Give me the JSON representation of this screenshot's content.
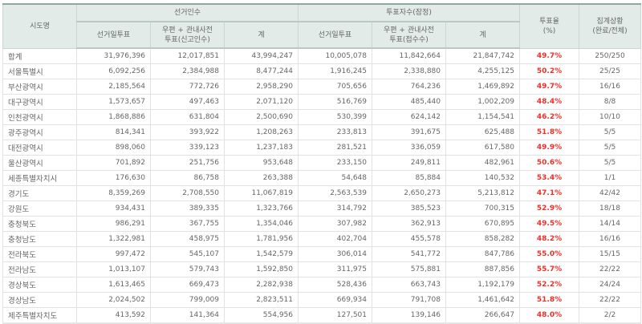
{
  "table": {
    "headers": {
      "region": "시도명",
      "electors_group": "선거인수",
      "voters_group": "투표자수(잠정)",
      "turnout": "투표율\n(%)",
      "status": "집계상황\n(완료/전체)",
      "electors_sub": [
        "선거일투표",
        "우편 + 관내사전\n투표(신고인수)",
        "계"
      ],
      "voters_sub": [
        "선거일투표",
        "우편 + 관내사전\n투표(접수수)",
        "계"
      ]
    },
    "rows": [
      {
        "region": "합계",
        "e_day": "31,976,396",
        "e_early": "12,017,851",
        "e_total": "43,994,247",
        "v_day": "10,005,078",
        "v_early": "11,842,664",
        "v_total": "21,847,742",
        "turnout": "49.7%",
        "status": "250/250"
      },
      {
        "region": "서울특별시",
        "e_day": "6,092,256",
        "e_early": "2,384,988",
        "e_total": "8,477,244",
        "v_day": "1,916,245",
        "v_early": "2,338,880",
        "v_total": "4,255,125",
        "turnout": "50.2%",
        "status": "25/25"
      },
      {
        "region": "부산광역시",
        "e_day": "2,185,564",
        "e_early": "772,726",
        "e_total": "2,958,290",
        "v_day": "705,656",
        "v_early": "764,236",
        "v_total": "1,469,892",
        "turnout": "49.7%",
        "status": "16/16"
      },
      {
        "region": "대구광역시",
        "e_day": "1,573,657",
        "e_early": "497,463",
        "e_total": "2,071,120",
        "v_day": "516,769",
        "v_early": "485,440",
        "v_total": "1,002,209",
        "turnout": "48.4%",
        "status": "8/8"
      },
      {
        "region": "인천광역시",
        "e_day": "1,868,886",
        "e_early": "631,804",
        "e_total": "2,500,690",
        "v_day": "530,399",
        "v_early": "624,142",
        "v_total": "1,154,541",
        "turnout": "46.2%",
        "status": "10/10"
      },
      {
        "region": "광주광역시",
        "e_day": "814,341",
        "e_early": "393,922",
        "e_total": "1,208,263",
        "v_day": "233,813",
        "v_early": "391,675",
        "v_total": "625,488",
        "turnout": "51.8%",
        "status": "5/5"
      },
      {
        "region": "대전광역시",
        "e_day": "898,060",
        "e_early": "339,123",
        "e_total": "1,237,183",
        "v_day": "281,521",
        "v_early": "336,059",
        "v_total": "617,580",
        "turnout": "49.9%",
        "status": "5/5"
      },
      {
        "region": "울산광역시",
        "e_day": "701,892",
        "e_early": "251,756",
        "e_total": "953,648",
        "v_day": "233,150",
        "v_early": "249,811",
        "v_total": "482,961",
        "turnout": "50.6%",
        "status": "5/5"
      },
      {
        "region": "세종특별자치시",
        "e_day": "176,630",
        "e_early": "86,758",
        "e_total": "263,388",
        "v_day": "54,648",
        "v_early": "85,884",
        "v_total": "140,532",
        "turnout": "53.4%",
        "status": "1/1"
      },
      {
        "region": "경기도",
        "e_day": "8,359,269",
        "e_early": "2,708,550",
        "e_total": "11,067,819",
        "v_day": "2,563,539",
        "v_early": "2,650,273",
        "v_total": "5,213,812",
        "turnout": "47.1%",
        "status": "42/42"
      },
      {
        "region": "강원도",
        "e_day": "934,431",
        "e_early": "389,335",
        "e_total": "1,323,766",
        "v_day": "314,792",
        "v_early": "385,523",
        "v_total": "700,315",
        "turnout": "52.9%",
        "status": "18/18"
      },
      {
        "region": "충청북도",
        "e_day": "986,291",
        "e_early": "367,755",
        "e_total": "1,354,046",
        "v_day": "307,982",
        "v_early": "362,913",
        "v_total": "670,895",
        "turnout": "49.5%",
        "status": "14/14"
      },
      {
        "region": "충청남도",
        "e_day": "1,322,981",
        "e_early": "458,975",
        "e_total": "1,781,956",
        "v_day": "402,704",
        "v_early": "455,578",
        "v_total": "858,282",
        "turnout": "48.2%",
        "status": "16/16"
      },
      {
        "region": "전라북도",
        "e_day": "997,472",
        "e_early": "545,107",
        "e_total": "1,542,579",
        "v_day": "306,014",
        "v_early": "541,772",
        "v_total": "847,786",
        "turnout": "55.0%",
        "status": "15/15"
      },
      {
        "region": "전라남도",
        "e_day": "1,013,107",
        "e_early": "579,743",
        "e_total": "1,592,850",
        "v_day": "311,975",
        "v_early": "575,881",
        "v_total": "887,856",
        "turnout": "55.7%",
        "status": "22/22"
      },
      {
        "region": "경상북도",
        "e_day": "1,613,465",
        "e_early": "669,473",
        "e_total": "2,282,938",
        "v_day": "528,436",
        "v_early": "663,743",
        "v_total": "1,192,179",
        "turnout": "52.2%",
        "status": "24/24"
      },
      {
        "region": "경상남도",
        "e_day": "2,024,502",
        "e_early": "799,009",
        "e_total": "2,823,511",
        "v_day": "669,934",
        "v_early": "791,708",
        "v_total": "1,461,642",
        "turnout": "51.8%",
        "status": "22/22"
      },
      {
        "region": "제주특별자치도",
        "e_day": "413,592",
        "e_early": "141,364",
        "e_total": "554,956",
        "v_day": "127,501",
        "v_early": "139,146",
        "v_total": "266,647",
        "turnout": "48.0%",
        "status": "2/2"
      }
    ]
  },
  "colors": {
    "header_bg": "#e3ebe9",
    "turnout_text": "#f0302a",
    "body_text": "#666666"
  }
}
